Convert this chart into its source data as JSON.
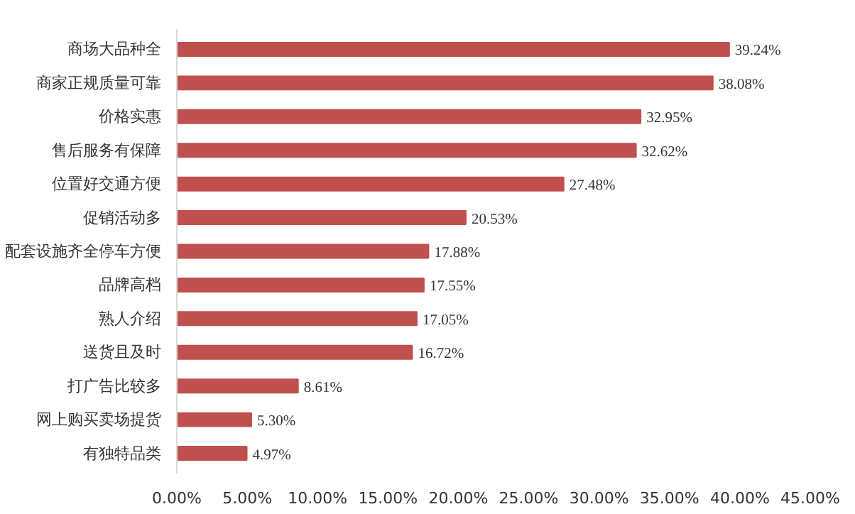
{
  "chart_data": {
    "type": "bar",
    "orientation": "horizontal",
    "categories": [
      "商场大品种全",
      "商家正规质量可靠",
      "价格实惠",
      "售后服务有保障",
      "位置好交通方便",
      "促销活动多",
      "配套设施齐全停车方便",
      "品牌高档",
      "熟人介绍",
      "送货且及时",
      "打广告比较多",
      "网上购买卖场提货",
      "有独特品类"
    ],
    "values": [
      39.24,
      38.08,
      32.95,
      32.62,
      27.48,
      20.53,
      17.88,
      17.55,
      17.05,
      16.72,
      8.61,
      5.3,
      4.97
    ],
    "value_labels": [
      "39.24%",
      "38.08%",
      "32.95%",
      "32.62%",
      "27.48%",
      "20.53%",
      "17.88%",
      "17.55%",
      "17.05%",
      "16.72%",
      "8.61%",
      "5.30%",
      "4.97%"
    ],
    "color": "#c0504d",
    "xlim": [
      0,
      45
    ],
    "xticks": [
      {
        "value": 0,
        "label": "0.00%"
      },
      {
        "value": 5,
        "label": "5.00%"
      },
      {
        "value": 10,
        "label": "10.00%"
      },
      {
        "value": 15,
        "label": "15.00%"
      },
      {
        "value": 20,
        "label": "20.00%"
      },
      {
        "value": 25,
        "label": "25.00%"
      },
      {
        "value": 30,
        "label": "30.00%"
      },
      {
        "value": 35,
        "label": "35.00%"
      },
      {
        "value": 40,
        "label": "40.00%"
      },
      {
        "value": 45,
        "label": "45.00%"
      }
    ],
    "grid": false
  }
}
